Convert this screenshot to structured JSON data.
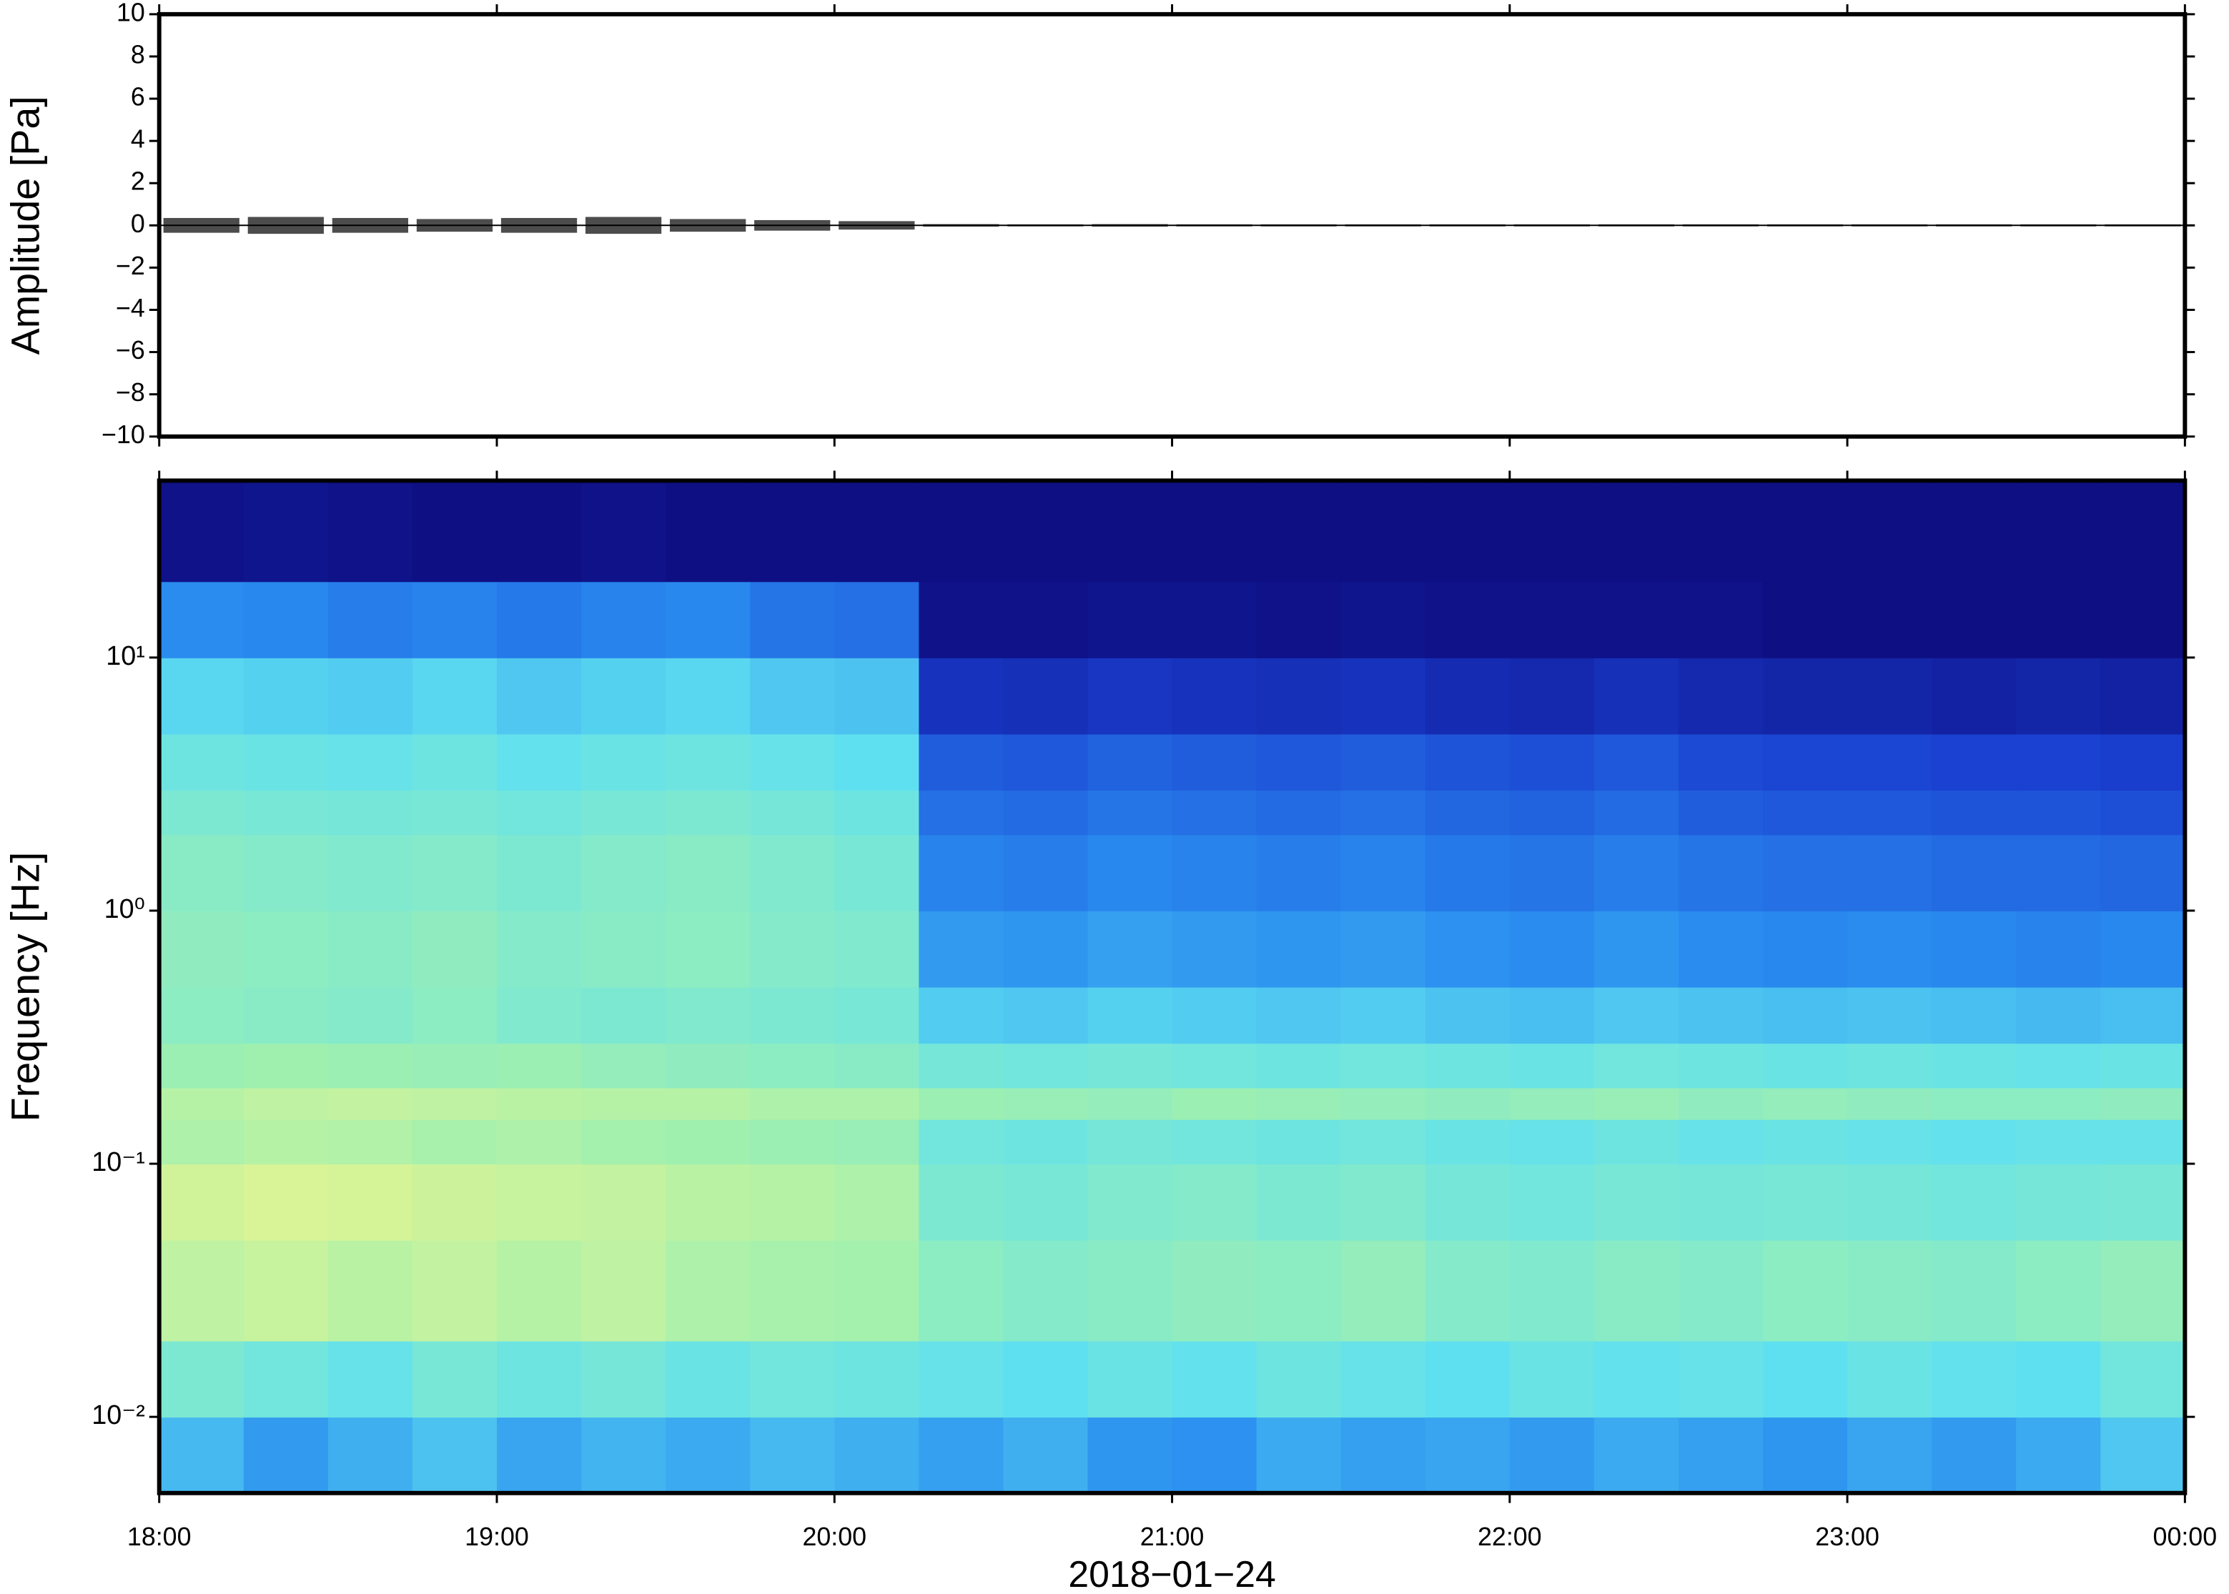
{
  "chart_data": [
    {
      "type": "waveform",
      "ylabel": "Amplitude [Pa]",
      "color": "#000000",
      "xlim": [
        18,
        24
      ],
      "xticks": [
        18,
        19,
        20,
        21,
        22,
        23,
        24
      ],
      "ylim": [
        -10,
        10
      ],
      "yticks": [
        {
          "value": -10,
          "label": "−10"
        },
        {
          "value": -8,
          "label": "−8"
        },
        {
          "value": -6,
          "label": "−6"
        },
        {
          "value": -4,
          "label": "−4"
        },
        {
          "value": -2,
          "label": "−2"
        },
        0,
        2,
        4,
        6,
        8,
        10
      ],
      "x": [
        18.125,
        18.375,
        18.625,
        18.875,
        19.125,
        19.375,
        19.625,
        19.875,
        20.125,
        20.375,
        20.625,
        20.875,
        21.125,
        21.375,
        21.625,
        21.875,
        22.125,
        22.375,
        22.625,
        22.875,
        23.125,
        23.375,
        23.625,
        23.875
      ],
      "values": [
        0.35,
        0.4,
        0.35,
        0.3,
        0.35,
        0.4,
        0.3,
        0.25,
        0.2,
        0.06,
        0.05,
        0.06,
        0.05,
        0.05,
        0.05,
        0.05,
        0.05,
        0.05,
        0.05,
        0.05,
        0.05,
        0.05,
        0.05,
        0.05
      ]
    },
    {
      "type": "spectrogram",
      "ylabel": "Frequency [Hz]",
      "xlabel": "2018−01−24",
      "log_y": true,
      "xlim": [
        18,
        24
      ],
      "xticks": [
        {
          "value": 18,
          "label": "18:00"
        },
        {
          "value": 19,
          "label": "19:00"
        },
        {
          "value": 20,
          "label": "20:00"
        },
        {
          "value": 21,
          "label": "21:00"
        },
        {
          "value": 22,
          "label": "22:00"
        },
        {
          "value": 23,
          "label": "23:00"
        },
        {
          "value": 24,
          "label": "00:00"
        }
      ],
      "ylim": [
        0.005,
        50
      ],
      "yticks": [
        {
          "value": 0.01,
          "label": "10⁻²"
        },
        {
          "value": 0.1,
          "label": "10⁻¹"
        },
        {
          "value": 1,
          "label": "10⁰"
        },
        {
          "value": 10,
          "label": "10¹"
        }
      ],
      "colormap": [
        "#0c0878",
        "#1a3fd0",
        "#2a8ef0",
        "#5fe0f0",
        "#9ef0b0",
        "#e8f590",
        "#f7c870"
      ],
      "time_edges": [
        18,
        18.25,
        18.5,
        18.75,
        19,
        19.25,
        19.5,
        19.75,
        20,
        20.25,
        20.5,
        20.75,
        21,
        21.25,
        21.5,
        21.75,
        22,
        22.25,
        22.5,
        22.75,
        23,
        23.25,
        23.5,
        23.75,
        24
      ],
      "freq_edges": [
        0.005,
        0.01,
        0.02,
        0.05,
        0.1,
        0.15,
        0.2,
        0.3,
        0.5,
        1,
        2,
        3,
        5,
        10,
        20,
        50
      ],
      "z": [
        [
          0.42,
          0.58,
          0.74,
          0.78,
          0.7,
          0.72,
          0.66,
          0.62,
          0.63,
          0.61,
          0.58,
          0.54,
          0.48,
          0.33,
          0.03
        ],
        [
          0.36,
          0.55,
          0.76,
          0.8,
          0.72,
          0.74,
          0.67,
          0.61,
          0.62,
          0.6,
          0.57,
          0.53,
          0.47,
          0.32,
          0.04
        ],
        [
          0.4,
          0.52,
          0.73,
          0.79,
          0.71,
          0.75,
          0.66,
          0.6,
          0.61,
          0.59,
          0.56,
          0.52,
          0.46,
          0.3,
          0.03
        ],
        [
          0.44,
          0.57,
          0.75,
          0.77,
          0.69,
          0.74,
          0.65,
          0.62,
          0.63,
          0.6,
          0.57,
          0.54,
          0.48,
          0.31,
          0.02
        ],
        [
          0.38,
          0.54,
          0.72,
          0.76,
          0.7,
          0.73,
          0.66,
          0.59,
          0.6,
          0.58,
          0.55,
          0.51,
          0.45,
          0.29,
          0.02
        ],
        [
          0.41,
          0.56,
          0.74,
          0.75,
          0.68,
          0.72,
          0.64,
          0.58,
          0.61,
          0.6,
          0.57,
          0.53,
          0.47,
          0.31,
          0.03
        ],
        [
          0.39,
          0.53,
          0.7,
          0.73,
          0.67,
          0.72,
          0.63,
          0.59,
          0.62,
          0.61,
          0.58,
          0.54,
          0.48,
          0.32,
          0.02
        ],
        [
          0.42,
          0.55,
          0.69,
          0.72,
          0.66,
          0.7,
          0.62,
          0.58,
          0.6,
          0.59,
          0.56,
          0.52,
          0.45,
          0.28,
          0.02
        ],
        [
          0.4,
          0.54,
          0.68,
          0.7,
          0.65,
          0.7,
          0.61,
          0.57,
          0.59,
          0.57,
          0.54,
          0.5,
          0.44,
          0.27,
          0.02
        ],
        [
          0.37,
          0.52,
          0.62,
          0.58,
          0.55,
          0.66,
          0.56,
          0.46,
          0.36,
          0.31,
          0.27,
          0.23,
          0.13,
          0.03,
          0.02
        ],
        [
          0.4,
          0.5,
          0.6,
          0.57,
          0.54,
          0.65,
          0.55,
          0.45,
          0.35,
          0.3,
          0.26,
          0.22,
          0.12,
          0.03,
          0.02
        ],
        [
          0.35,
          0.53,
          0.61,
          0.59,
          0.56,
          0.64,
          0.56,
          0.47,
          0.37,
          0.32,
          0.28,
          0.24,
          0.14,
          0.04,
          0.02
        ],
        [
          0.34,
          0.51,
          0.63,
          0.6,
          0.55,
          0.66,
          0.55,
          0.46,
          0.36,
          0.31,
          0.27,
          0.23,
          0.13,
          0.04,
          0.02
        ],
        [
          0.39,
          0.54,
          0.62,
          0.58,
          0.54,
          0.65,
          0.54,
          0.45,
          0.35,
          0.3,
          0.26,
          0.22,
          0.12,
          0.03,
          0.02
        ],
        [
          0.37,
          0.52,
          0.64,
          0.59,
          0.55,
          0.64,
          0.55,
          0.46,
          0.36,
          0.31,
          0.27,
          0.23,
          0.13,
          0.04,
          0.02
        ],
        [
          0.38,
          0.5,
          0.6,
          0.56,
          0.53,
          0.63,
          0.54,
          0.44,
          0.34,
          0.29,
          0.25,
          0.21,
          0.11,
          0.03,
          0.02
        ],
        [
          0.36,
          0.53,
          0.59,
          0.55,
          0.52,
          0.64,
          0.53,
          0.43,
          0.33,
          0.28,
          0.24,
          0.2,
          0.1,
          0.03,
          0.02
        ],
        [
          0.39,
          0.51,
          0.61,
          0.57,
          0.54,
          0.65,
          0.55,
          0.45,
          0.35,
          0.3,
          0.26,
          0.22,
          0.12,
          0.03,
          0.02
        ],
        [
          0.37,
          0.52,
          0.6,
          0.56,
          0.52,
          0.63,
          0.54,
          0.44,
          0.33,
          0.28,
          0.23,
          0.19,
          0.1,
          0.03,
          0.02
        ],
        [
          0.35,
          0.5,
          0.62,
          0.57,
          0.53,
          0.64,
          0.53,
          0.43,
          0.32,
          0.27,
          0.22,
          0.18,
          0.09,
          0.02,
          0.02
        ],
        [
          0.38,
          0.53,
          0.61,
          0.56,
          0.52,
          0.63,
          0.54,
          0.44,
          0.33,
          0.27,
          0.22,
          0.18,
          0.09,
          0.02,
          0.02
        ],
        [
          0.36,
          0.51,
          0.6,
          0.55,
          0.51,
          0.62,
          0.53,
          0.43,
          0.32,
          0.26,
          0.21,
          0.17,
          0.08,
          0.02,
          0.02
        ],
        [
          0.39,
          0.5,
          0.62,
          0.56,
          0.52,
          0.62,
          0.52,
          0.42,
          0.31,
          0.26,
          0.21,
          0.17,
          0.09,
          0.02,
          0.02
        ],
        [
          0.45,
          0.55,
          0.64,
          0.57,
          0.52,
          0.63,
          0.53,
          0.43,
          0.32,
          0.25,
          0.2,
          0.16,
          0.08,
          0.02,
          0.02
        ]
      ]
    }
  ]
}
